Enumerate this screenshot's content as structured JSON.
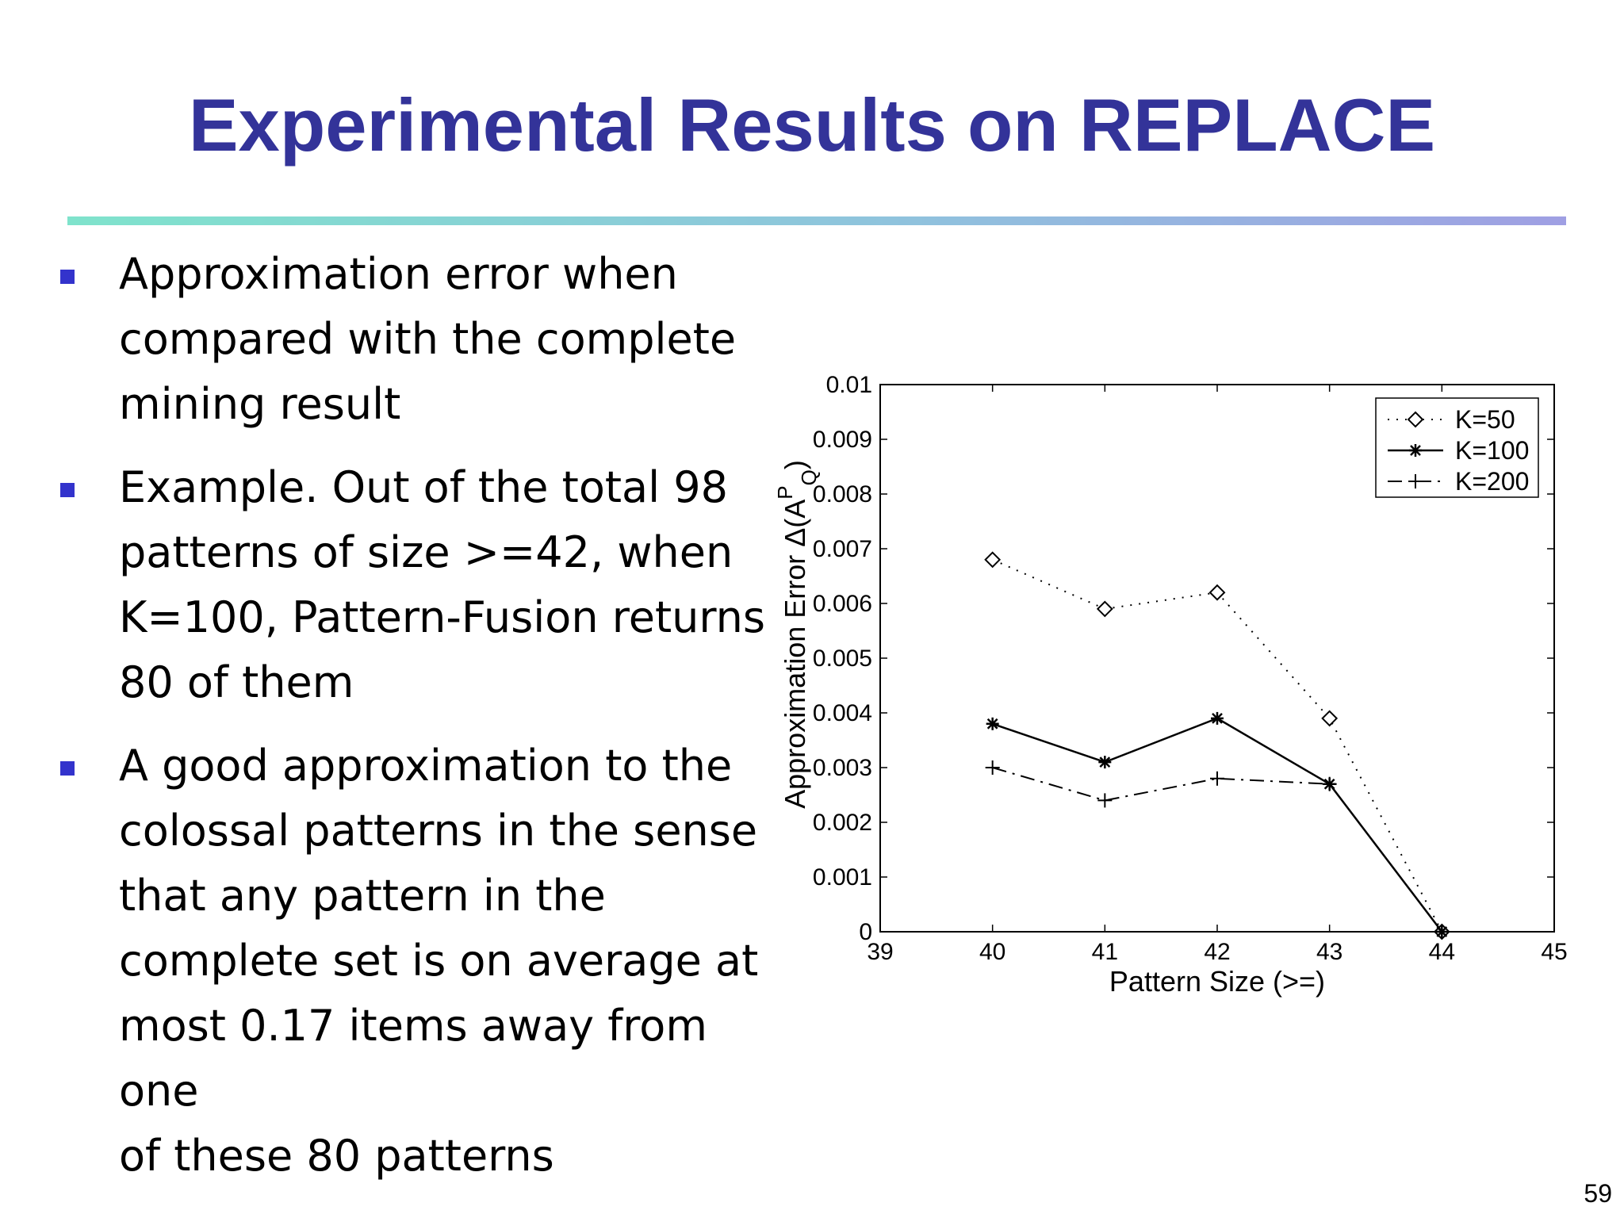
{
  "slide": {
    "title": "Experimental Results on REPLACE",
    "page_number": "59",
    "title_color": "#333399",
    "bullet_color": "#3333cc",
    "bullets": [
      {
        "text": "Approximation error when\ncompared with the complete\nmining result"
      },
      {
        "text": "Example.  Out of the total 98\npatterns of size >=42, when\nK=100, Pattern-Fusion returns\n80 of them"
      },
      {
        "text": "A good approximation to the\ncolossal patterns in the sense\nthat any pattern in the\ncomplete set is on average at\nmost 0.17 items away from one\nof these 80 patterns"
      }
    ]
  },
  "chart_data": {
    "type": "line",
    "title": "",
    "xlabel": "Pattern Size (>=)",
    "ylabel": "Approximation Error  Δ(A",
    "ylabel_sup": "P",
    "ylabel_sub": "Q",
    "ylabel_end": ")",
    "xlim": [
      39,
      45
    ],
    "ylim": [
      0,
      0.01
    ],
    "xticks": [
      "39",
      "40",
      "41",
      "42",
      "43",
      "44",
      "45"
    ],
    "yticks": [
      "0",
      "0.001",
      "0.002",
      "0.003",
      "0.004",
      "0.005",
      "0.006",
      "0.007",
      "0.008",
      "0.009",
      "0.01"
    ],
    "grid": false,
    "legend_position": "top-right",
    "x": [
      40,
      41,
      42,
      43,
      44
    ],
    "series": [
      {
        "name": "K=50",
        "values": [
          0.0068,
          0.0059,
          0.0062,
          0.0039,
          0.0
        ],
        "line_style": "dotted",
        "marker": "diamond",
        "color": "#000000"
      },
      {
        "name": "K=100",
        "values": [
          0.0038,
          0.0031,
          0.0039,
          0.0027,
          0.0
        ],
        "line_style": "solid",
        "marker": "star",
        "color": "#000000"
      },
      {
        "name": "K=200",
        "values": [
          0.003,
          0.0024,
          0.0028,
          0.0027,
          0.0
        ],
        "line_style": "dashdot",
        "marker": "plus",
        "color": "#000000"
      }
    ]
  }
}
